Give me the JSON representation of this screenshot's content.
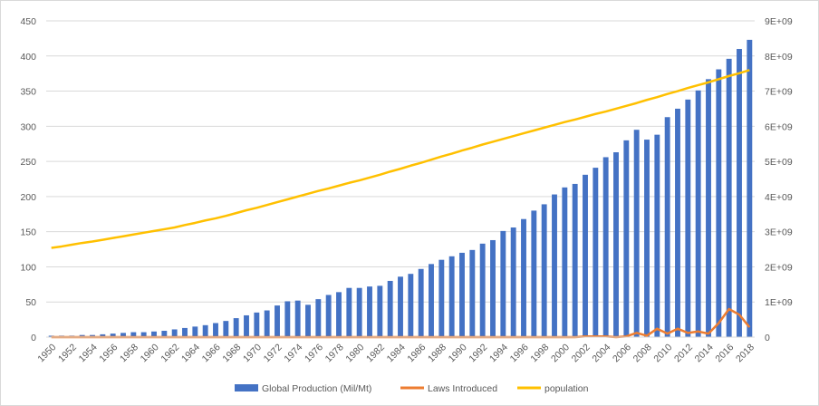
{
  "colors": {
    "production": "#4472c4",
    "laws": "#ed7d31",
    "population": "#ffc000",
    "grid": "#d9d9d9",
    "text": "#595959"
  },
  "chart_data": {
    "type": "bar",
    "title": "",
    "x": [
      1950,
      1951,
      1952,
      1953,
      1954,
      1955,
      1956,
      1957,
      1958,
      1959,
      1960,
      1961,
      1962,
      1963,
      1964,
      1965,
      1966,
      1967,
      1968,
      1969,
      1970,
      1971,
      1972,
      1973,
      1974,
      1975,
      1976,
      1977,
      1978,
      1979,
      1980,
      1981,
      1982,
      1983,
      1984,
      1985,
      1986,
      1987,
      1988,
      1989,
      1990,
      1991,
      1992,
      1993,
      1994,
      1995,
      1996,
      1997,
      1998,
      1999,
      2000,
      2001,
      2002,
      2003,
      2004,
      2005,
      2006,
      2007,
      2008,
      2009,
      2010,
      2011,
      2012,
      2013,
      2014,
      2015,
      2016,
      2017,
      2018
    ],
    "x_tick_labels": [
      "1950",
      "1952",
      "1954",
      "1956",
      "1958",
      "1960",
      "1962",
      "1964",
      "1966",
      "1968",
      "1970",
      "1972",
      "1974",
      "1976",
      "1978",
      "1980",
      "1982",
      "1984",
      "1986",
      "1988",
      "1990",
      "1992",
      "1994",
      "1996",
      "1998",
      "2000",
      "2002",
      "2004",
      "2006",
      "2008",
      "2010",
      "2012",
      "2014",
      "2016",
      "2018"
    ],
    "y_left_ticks": [
      "0",
      "50",
      "100",
      "150",
      "200",
      "250",
      "300",
      "350",
      "400",
      "450"
    ],
    "y_right_ticks": [
      "0",
      "1E+09",
      "2E+09",
      "3E+09",
      "4E+09",
      "5E+09",
      "6E+09",
      "7E+09",
      "8E+09",
      "9E+09"
    ],
    "ylim_left": [
      0,
      450
    ],
    "ylim_right": [
      0,
      9000000000
    ],
    "grid": true,
    "legend_position": "bottom",
    "series": [
      {
        "name": "Global Production (Mil/Mt)",
        "type": "bar",
        "axis": "left",
        "values": [
          2,
          2,
          2,
          3,
          3,
          4,
          5,
          6,
          7,
          7,
          8,
          9,
          11,
          13,
          15,
          17,
          20,
          23,
          27,
          31,
          35,
          38,
          45,
          51,
          52,
          46,
          54,
          60,
          64,
          70,
          70,
          72,
          73,
          80,
          86,
          90,
          97,
          104,
          110,
          115,
          120,
          124,
          133,
          138,
          151,
          156,
          168,
          180,
          189,
          203,
          213,
          218,
          231,
          241,
          256,
          263,
          280,
          295,
          281,
          288,
          313,
          325,
          338,
          351,
          367,
          381,
          396,
          410,
          423
        ]
      },
      {
        "name": "Laws Introduced",
        "type": "line",
        "axis": "left",
        "values": [
          0,
          0,
          0,
          0,
          0,
          0,
          0,
          0,
          0,
          0,
          0,
          0,
          0,
          0,
          0,
          0,
          0,
          0,
          0,
          0,
          0,
          0,
          0,
          0,
          0,
          0,
          0,
          0,
          0,
          0,
          0,
          0,
          0,
          0,
          0,
          0,
          0,
          0,
          0,
          0,
          0,
          0,
          0,
          0,
          0,
          0,
          0,
          0,
          0,
          0,
          0,
          0,
          1,
          1,
          1,
          0,
          1,
          6,
          2,
          12,
          5,
          12,
          6,
          8,
          5,
          20,
          40,
          32,
          14
        ]
      },
      {
        "name": "population",
        "type": "line",
        "axis": "right",
        "values": [
          2540000000,
          2580000000,
          2630000000,
          2680000000,
          2720000000,
          2770000000,
          2820000000,
          2870000000,
          2920000000,
          2970000000,
          3020000000,
          3070000000,
          3120000000,
          3190000000,
          3250000000,
          3320000000,
          3380000000,
          3450000000,
          3530000000,
          3610000000,
          3680000000,
          3760000000,
          3840000000,
          3920000000,
          4000000000,
          4080000000,
          4160000000,
          4230000000,
          4310000000,
          4390000000,
          4460000000,
          4540000000,
          4620000000,
          4710000000,
          4790000000,
          4880000000,
          4960000000,
          5050000000,
          5140000000,
          5220000000,
          5310000000,
          5390000000,
          5480000000,
          5560000000,
          5640000000,
          5720000000,
          5800000000,
          5880000000,
          5960000000,
          6040000000,
          6120000000,
          6190000000,
          6270000000,
          6350000000,
          6420000000,
          6500000000,
          6580000000,
          6660000000,
          6750000000,
          6830000000,
          6920000000,
          7000000000,
          7090000000,
          7170000000,
          7250000000,
          7340000000,
          7430000000,
          7510000000,
          7600000000
        ]
      }
    ]
  }
}
